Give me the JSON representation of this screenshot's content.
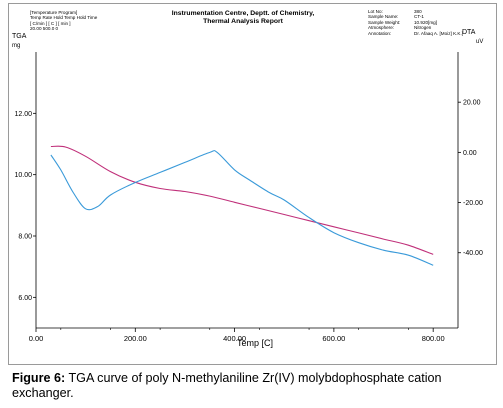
{
  "report": {
    "title_line1": "Instrumentation Centre, Deptt. of Chemistry,",
    "title_line2": "Thermal Analysis Report",
    "program_header": "[Temperature Program]",
    "program_columns": "Temp  Rate  Hold Temp   Hold Time",
    "program_units": "[ C/min ]       [  C  ]         [ min ]",
    "program_values": "20.00             500.0           0",
    "info": [
      {
        "label": "Lot No:",
        "value": "380"
      },
      {
        "label": "Sample Name:",
        "value": "CT-1"
      },
      {
        "label": "Sample Weight:",
        "value": "10.920[mg]"
      },
      {
        "label": "Atmosphere:",
        "value": "Nitrogen"
      },
      {
        "label": "Annotation:",
        "value": "Dr. Afaaq A. [Moiz] K.K.]"
      }
    ]
  },
  "chart_data": {
    "type": "line",
    "xlabel": "Temp  [C]",
    "ylabel_left": "TGA",
    "ylabel_left_unit": "mg",
    "ylabel_right": "DTA",
    "ylabel_right_unit": "uV",
    "xlim": [
      0,
      850
    ],
    "ylim_left": [
      5.0,
      14.0
    ],
    "ylim_right": [
      -70,
      40
    ],
    "x_ticks": [
      0,
      200,
      400,
      600,
      800
    ],
    "x_tick_labels": [
      "0.00",
      "200.00",
      "400.00",
      "600.00",
      "800.00"
    ],
    "y_left_ticks": [
      6,
      8,
      10,
      12
    ],
    "y_left_tick_labels": [
      "6.00",
      "8.00",
      "10.00",
      "12.00"
    ],
    "y_right_ticks": [
      -40,
      -20,
      0,
      20
    ],
    "y_right_tick_labels": [
      "-40.00",
      "-20.00",
      "0.00",
      "20.00"
    ],
    "series": [
      {
        "axis": "left",
        "color": "#c0307a",
        "points": [
          [
            30,
            10.92
          ],
          [
            60,
            10.9
          ],
          [
            100,
            10.6
          ],
          [
            150,
            10.1
          ],
          [
            200,
            9.75
          ],
          [
            250,
            9.55
          ],
          [
            300,
            9.45
          ],
          [
            350,
            9.3
          ],
          [
            400,
            9.1
          ],
          [
            450,
            8.9
          ],
          [
            500,
            8.7
          ],
          [
            550,
            8.5
          ],
          [
            600,
            8.3
          ],
          [
            650,
            8.1
          ],
          [
            700,
            7.9
          ],
          [
            750,
            7.7
          ],
          [
            800,
            7.4
          ]
        ]
      },
      {
        "axis": "right",
        "color": "#3a9ad9",
        "points": [
          [
            30,
            -1.0
          ],
          [
            50,
            -7
          ],
          [
            75,
            -16
          ],
          [
            100,
            -22.5
          ],
          [
            125,
            -21.5
          ],
          [
            150,
            -17
          ],
          [
            200,
            -12
          ],
          [
            250,
            -8
          ],
          [
            300,
            -4
          ],
          [
            350,
            0
          ],
          [
            365,
            0
          ],
          [
            400,
            -7
          ],
          [
            430,
            -11
          ],
          [
            470,
            -16
          ],
          [
            500,
            -19
          ],
          [
            550,
            -26
          ],
          [
            600,
            -32
          ],
          [
            650,
            -36
          ],
          [
            700,
            -39
          ],
          [
            750,
            -41
          ],
          [
            800,
            -45
          ]
        ]
      }
    ]
  },
  "caption": {
    "label": "Figure 6:",
    "text": " TGA curve of poly N-methylaniline Zr(IV) molybdophosphate cation exchanger."
  }
}
